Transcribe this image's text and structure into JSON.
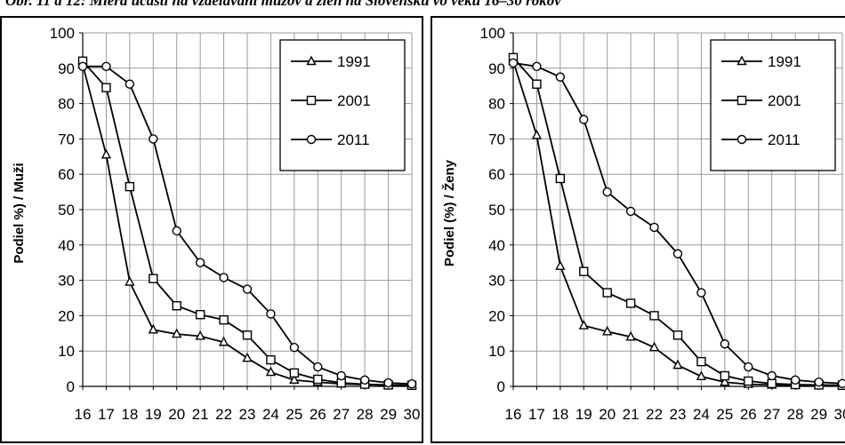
{
  "page": {
    "title": "Obr. 11 a 12: Miera účasti na vzdelávaní mužov a žien na Slovensku vo veku 16–30 rokov"
  },
  "chart_data": [
    {
      "type": "line",
      "title": "",
      "xlabel": "",
      "ylabel": "Podiel  %) / Muži",
      "x": [
        16,
        17,
        18,
        19,
        20,
        21,
        22,
        23,
        24,
        25,
        26,
        27,
        28,
        29,
        30
      ],
      "x_tick_labels": [
        "16",
        "17",
        "18",
        "19",
        "20",
        "21",
        "22",
        "23",
        "24",
        "25",
        "26",
        "27",
        "28",
        "29",
        "30"
      ],
      "ylim": [
        0,
        100
      ],
      "y_ticks": [
        "0",
        "10",
        "20",
        "30",
        "40",
        "50",
        "60",
        "70",
        "80",
        "90",
        "100"
      ],
      "grid": true,
      "legend_position": "top-right",
      "series": [
        {
          "name": "1991",
          "marker": "triangle",
          "values": [
            91,
            65.5,
            29.5,
            16,
            14.8,
            14.2,
            12.5,
            8,
            4,
            1.8,
            1.2,
            0.7,
            0.5,
            0.3,
            0.3
          ]
        },
        {
          "name": "2001",
          "marker": "square",
          "values": [
            92,
            84.5,
            56.5,
            30.5,
            22.8,
            20.3,
            18.8,
            14.5,
            7.5,
            3.8,
            2,
            1,
            0.6,
            0.4,
            0.3
          ]
        },
        {
          "name": "2011",
          "marker": "circle",
          "values": [
            90.5,
            90.5,
            85.5,
            70,
            44,
            35,
            30.8,
            27.5,
            20.5,
            11,
            5.5,
            3,
            1.8,
            1,
            0.7
          ]
        }
      ]
    },
    {
      "type": "line",
      "title": "",
      "xlabel": "",
      "ylabel": "Podiel (%) / Ženy",
      "x": [
        16,
        17,
        18,
        19,
        20,
        21,
        22,
        23,
        24,
        25,
        26,
        27,
        28,
        29,
        30
      ],
      "x_tick_labels": [
        "16",
        "17",
        "18",
        "19",
        "20",
        "21",
        "22",
        "23",
        "24",
        "25",
        "26",
        "27",
        "28",
        "29",
        "30"
      ],
      "ylim": [
        0,
        100
      ],
      "y_ticks": [
        "0",
        "10",
        "20",
        "30",
        "40",
        "50",
        "60",
        "70",
        "80",
        "90",
        "100"
      ],
      "grid": true,
      "legend_position": "top-right",
      "series": [
        {
          "name": "1991",
          "marker": "triangle",
          "values": [
            92,
            71,
            34,
            17.2,
            15.5,
            14,
            11,
            6,
            2.8,
            1.2,
            0.6,
            0.4,
            0.3,
            0.2,
            0.2
          ]
        },
        {
          "name": "2001",
          "marker": "square",
          "values": [
            93,
            85.5,
            58.8,
            32.5,
            26.5,
            23.5,
            20,
            14.5,
            7,
            3,
            1.5,
            0.8,
            0.5,
            0.4,
            0.3
          ]
        },
        {
          "name": "2011",
          "marker": "circle",
          "values": [
            91.5,
            90.5,
            87.5,
            75.5,
            55,
            49.5,
            45,
            37.5,
            26.5,
            12,
            5.5,
            3,
            1.8,
            1.2,
            0.8
          ]
        }
      ]
    }
  ]
}
